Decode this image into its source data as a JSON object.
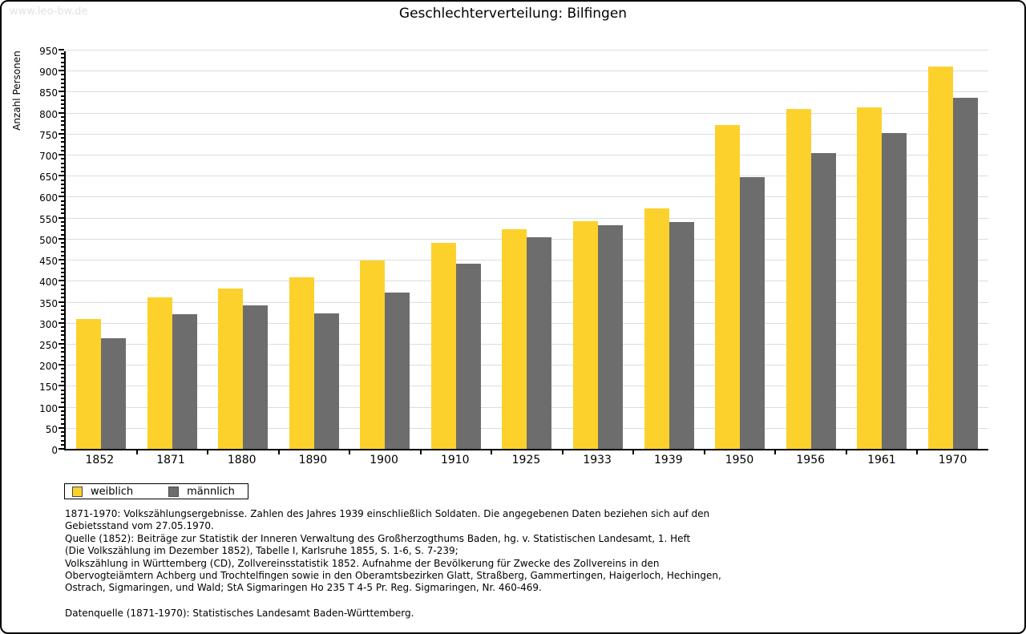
{
  "watermark": "www.leo-bw.de",
  "title": "Geschlechterverteilung: Bilfingen",
  "colors": {
    "weiblich": "#FCD12C",
    "maennlich": "#6D6D6D",
    "gridline": "#DCDCDC",
    "axis": "#000000",
    "watermark": "#E2E2E2",
    "text": "#000000"
  },
  "chart_data": {
    "type": "bar",
    "title": "Geschlechterverteilung: Bilfingen",
    "xlabel": "",
    "ylabel": "Anzahl Personen",
    "ylim": [
      0,
      950
    ],
    "ytick_step": 50,
    "minor_tick_step": 10,
    "grid": true,
    "legend_position": "bottom-left",
    "categories": [
      "1852",
      "1871",
      "1880",
      "1890",
      "1900",
      "1910",
      "1925",
      "1933",
      "1939",
      "1950",
      "1956",
      "1961",
      "1970"
    ],
    "series": [
      {
        "name": "weiblich",
        "color": "#FCD12C",
        "values": [
          310,
          361,
          381,
          408,
          449,
          491,
          523,
          541,
          573,
          771,
          808,
          813,
          910
        ]
      },
      {
        "name": "männlich",
        "color": "#6D6D6D",
        "values": [
          263,
          321,
          342,
          323,
          372,
          441,
          504,
          533,
          540,
          646,
          704,
          751,
          835
        ]
      }
    ]
  },
  "legend": {
    "items": [
      {
        "label": "weiblich",
        "color": "#FCD12C"
      },
      {
        "label": "männlich",
        "color": "#6D6D6D"
      }
    ]
  },
  "footnotes": [
    "1871-1970: Volkszählungsergebnisse. Zahlen des Jahres 1939 einschließlich Soldaten. Die angegebenen Daten beziehen sich auf den",
    "Gebietsstand vom 27.05.1970.",
    "Quelle (1852): Beiträge zur Statistik der Inneren Verwaltung des Großherzogthums Baden, hg. v. Statistischen Landesamt, 1. Heft",
    "(Die Volkszählung im Dezember 1852), Tabelle I, Karlsruhe 1855, S. 1-6, S. 7-239;",
    "Volkszählung in Württemberg (CD), Zollvereinsstatistik 1852. Aufnahme der Bevölkerung für Zwecke des Zollvereins in den",
    "Obervogteiämtern Achberg und Trochtelfingen sowie in den Oberamtsbezirken Glatt, Straßberg, Gammertingen, Haigerloch, Hechingen,",
    "Ostrach, Sigmaringen, und Wald; StA Sigmaringen Ho 235 T 4-5 Pr. Reg. Sigmaringen, Nr. 460-469."
  ],
  "datasource": "Datenquelle (1871-1970): Statistisches Landesamt Baden-Württemberg."
}
